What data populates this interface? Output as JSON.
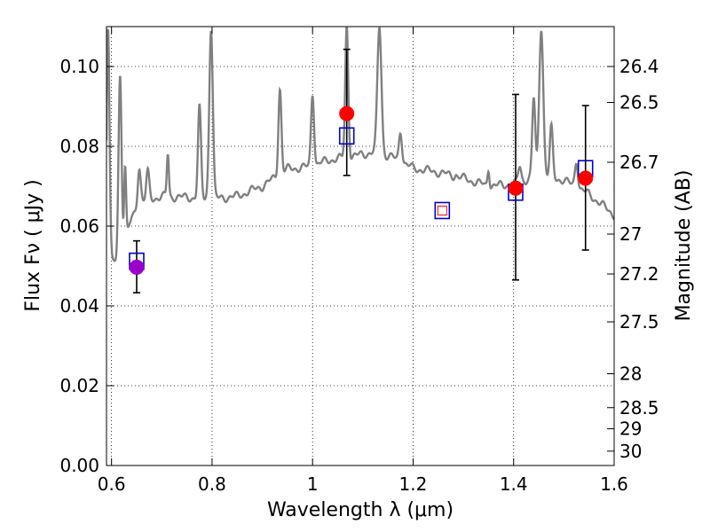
{
  "chart_data": {
    "type": "scatter",
    "xlabel": "Wavelength  λ (μm)",
    "ylabel": "Flux  Fν  ( μJy )",
    "y2label": "Magnitude (AB)",
    "xlim": [
      0.59,
      1.6
    ],
    "ylim": [
      0.0,
      0.11
    ],
    "grid": true,
    "x_ticks": [
      0.6,
      0.8,
      1.0,
      1.2,
      1.4,
      1.6
    ],
    "x_tick_labels": [
      "0.6",
      "0.8",
      "1",
      "1.2",
      "1.4",
      "1.6"
    ],
    "y_ticks": [
      0.0,
      0.02,
      0.04,
      0.06,
      0.08,
      0.1
    ],
    "y_tick_labels": [
      "0.00",
      "0.02",
      "0.04",
      "0.06",
      "0.08",
      "0.10"
    ],
    "y2_ticks": [
      {
        "label": "26.4",
        "flux": 0.1
      },
      {
        "label": "26.5",
        "flux": 0.091
      },
      {
        "label": "26.7",
        "flux": 0.076
      },
      {
        "label": "27",
        "flux": 0.058
      },
      {
        "label": "27.2",
        "flux": 0.048
      },
      {
        "label": "27.5",
        "flux": 0.036
      },
      {
        "label": "28",
        "flux": 0.023
      },
      {
        "label": "28.5",
        "flux": 0.0145
      },
      {
        "label": "29",
        "flux": 0.0092
      },
      {
        "label": "30",
        "flux": 0.0036
      }
    ],
    "observed": [
      {
        "x": 0.65,
        "y": 0.0497,
        "yerr_low": 0.0433,
        "yerr_high": 0.0563,
        "color": "#9b00c8"
      },
      {
        "x": 1.068,
        "y": 0.0882,
        "yerr_low": 0.0727,
        "yerr_high": 0.1043,
        "color": "#ff0000"
      },
      {
        "x": 1.404,
        "y": 0.0695,
        "yerr_low": 0.0465,
        "yerr_high": 0.093,
        "color": "#ff0000"
      },
      {
        "x": 1.543,
        "y": 0.072,
        "yerr_low": 0.054,
        "yerr_high": 0.0902,
        "color": "#ff0000"
      }
    ],
    "model_bands": [
      {
        "x": 0.65,
        "y": 0.0512,
        "color": "#0000cc"
      },
      {
        "x": 1.068,
        "y": 0.0826,
        "color": "#0000cc"
      },
      {
        "x": 1.258,
        "y": 0.0639,
        "color": "#0000cc",
        "inner_color": "#ff0000"
      },
      {
        "x": 1.404,
        "y": 0.0685,
        "color": "#0000cc"
      },
      {
        "x": 1.543,
        "y": 0.0744,
        "color": "#0000cc"
      }
    ],
    "spectrum": {
      "color": "#808080",
      "continuum": [
        [
          0.59,
          0.042
        ],
        [
          0.6,
          0.05
        ],
        [
          0.62,
          0.053
        ],
        [
          0.64,
          0.062
        ],
        [
          0.66,
          0.066
        ],
        [
          0.7,
          0.0675
        ],
        [
          0.75,
          0.0672
        ],
        [
          0.8,
          0.0668
        ],
        [
          0.85,
          0.0675
        ],
        [
          0.9,
          0.07
        ],
        [
          0.95,
          0.0743
        ],
        [
          1.0,
          0.075
        ],
        [
          1.03,
          0.0765
        ],
        [
          1.08,
          0.0775
        ],
        [
          1.12,
          0.0785
        ],
        [
          1.16,
          0.0772
        ],
        [
          1.2,
          0.0745
        ],
        [
          1.25,
          0.0735
        ],
        [
          1.3,
          0.072
        ],
        [
          1.35,
          0.07
        ],
        [
          1.4,
          0.0705
        ],
        [
          1.45,
          0.0728
        ],
        [
          1.5,
          0.0715
        ],
        [
          1.55,
          0.068
        ],
        [
          1.6,
          0.0628
        ]
      ],
      "emission_lines": [
        {
          "x": 0.593,
          "peak": 0.11,
          "width": 0.003
        },
        {
          "x": 0.617,
          "peak": 0.098,
          "width": 0.003
        },
        {
          "x": 0.627,
          "peak": 0.075,
          "width": 0.002
        },
        {
          "x": 0.655,
          "peak": 0.075,
          "width": 0.003
        },
        {
          "x": 0.672,
          "peak": 0.0735,
          "width": 0.003
        },
        {
          "x": 0.712,
          "peak": 0.078,
          "width": 0.002
        },
        {
          "x": 0.775,
          "peak": 0.0895,
          "width": 0.003
        },
        {
          "x": 0.798,
          "peak": 0.11,
          "width": 0.0035
        },
        {
          "x": 0.935,
          "peak": 0.0945,
          "width": 0.003
        },
        {
          "x": 1.0,
          "peak": 0.0935,
          "width": 0.003
        },
        {
          "x": 1.068,
          "peak": 0.11,
          "width": 0.003
        },
        {
          "x": 1.133,
          "peak": 0.11,
          "width": 0.004
        },
        {
          "x": 1.175,
          "peak": 0.084,
          "width": 0.003
        },
        {
          "x": 1.285,
          "peak": 0.073,
          "width": 0.002
        },
        {
          "x": 1.35,
          "peak": 0.0745,
          "width": 0.002
        },
        {
          "x": 1.412,
          "peak": 0.075,
          "width": 0.003
        },
        {
          "x": 1.44,
          "peak": 0.092,
          "width": 0.003
        },
        {
          "x": 1.455,
          "peak": 0.11,
          "width": 0.004
        },
        {
          "x": 1.475,
          "peak": 0.0845,
          "width": 0.003
        },
        {
          "x": 1.525,
          "peak": 0.0765,
          "width": 0.003
        }
      ]
    }
  }
}
